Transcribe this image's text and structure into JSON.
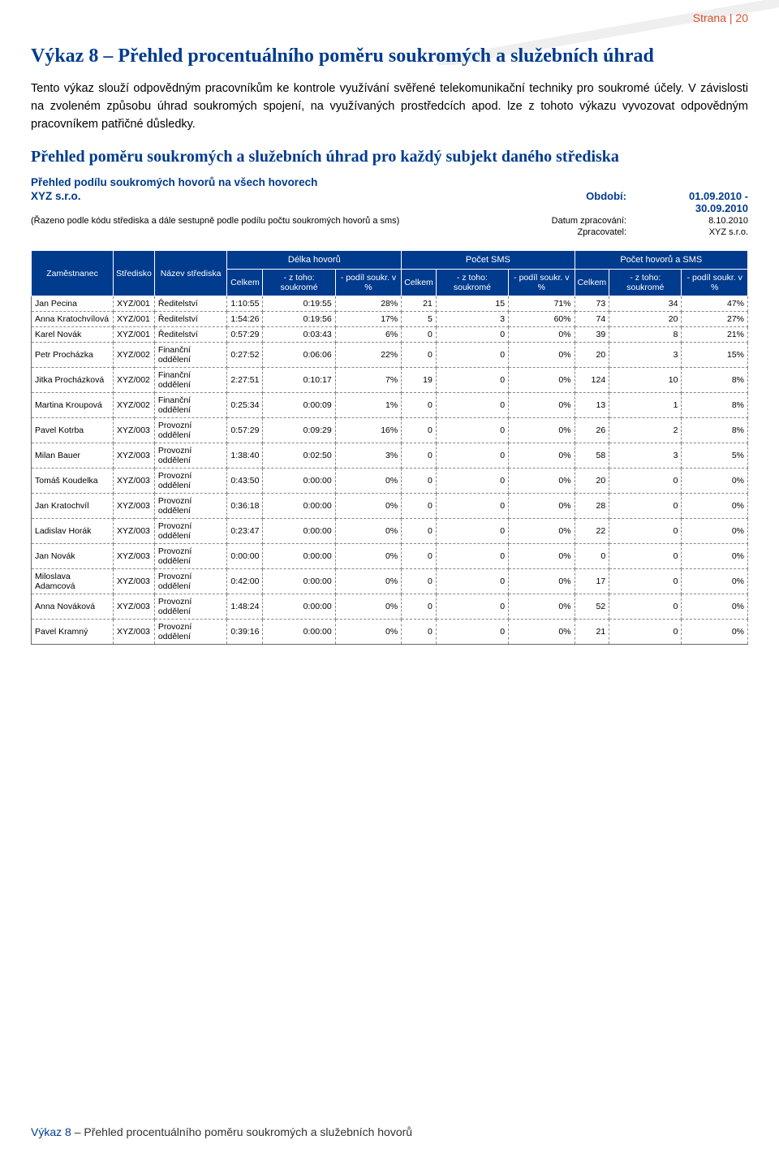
{
  "page_label": "Strana | 20",
  "title": "Výkaz 8 – Přehled procentuálního poměru soukromých a služebních úhrad",
  "para1": "Tento výkaz slouží odpovědným pracovníkům ke kontrole využívání svěřené telekomunikační techniky pro soukromé účely. V závislosti na zvoleném způsobu úhrad soukromých spojení, na využívaných prostředcích apod. lze z tohoto výkazu vyvozovat odpovědným pracovníkem patřičné důsledky.",
  "subtitle": "Přehled poměru soukromých a služebních úhrad pro každý subjekt daného střediska",
  "report": {
    "line1": "Přehled podílu soukromých hovorů na všech hovorech",
    "line2": "XYZ s.r.o.",
    "period_label": "Období:",
    "period_value": "01.09.2010 - 30.09.2010",
    "sort_note": "(Řazeno podle kódu střediska a dále sestupně podle podílu počtu soukromých hovorů a sms)",
    "date_label": "Datum zpracování:",
    "date_value": "8.10.2010",
    "proc_label": "Zpracovatel:",
    "proc_value": "XYZ s.r.o."
  },
  "table": {
    "groups": [
      "Délka hovorů",
      "Počet SMS",
      "Počet hovorů a SMS"
    ],
    "head": {
      "zam": "Zaměstnanec",
      "str": "Středisko",
      "naz": "Název střediska",
      "celkem": "Celkem",
      "ztoho": "- z toho: soukromé",
      "podil": "- podíl soukr. v %"
    },
    "rows": [
      [
        "Jan Pecina",
        "XYZ/001",
        "Ředitelství",
        "1:10:55",
        "0:19:55",
        "28%",
        "21",
        "15",
        "71%",
        "73",
        "34",
        "47%"
      ],
      [
        "Anna Kratochvílová",
        "XYZ/001",
        "Ředitelství",
        "1:54:26",
        "0:19:56",
        "17%",
        "5",
        "3",
        "60%",
        "74",
        "20",
        "27%"
      ],
      [
        "Karel Novák",
        "XYZ/001",
        "Ředitelství",
        "0:57:29",
        "0:03:43",
        "6%",
        "0",
        "0",
        "0%",
        "39",
        "8",
        "21%"
      ],
      [
        "Petr Procházka",
        "XYZ/002",
        "Finanční oddělení",
        "0:27:52",
        "0:06:06",
        "22%",
        "0",
        "0",
        "0%",
        "20",
        "3",
        "15%"
      ],
      [
        "Jitka Procházková",
        "XYZ/002",
        "Finanční oddělení",
        "2:27:51",
        "0:10:17",
        "7%",
        "19",
        "0",
        "0%",
        "124",
        "10",
        "8%"
      ],
      [
        "Martina Kroupová",
        "XYZ/002",
        "Finanční oddělení",
        "0:25:34",
        "0:00:09",
        "1%",
        "0",
        "0",
        "0%",
        "13",
        "1",
        "8%"
      ],
      [
        "Pavel Kotrba",
        "XYZ/003",
        "Provozní oddělení",
        "0:57:29",
        "0:09:29",
        "16%",
        "0",
        "0",
        "0%",
        "26",
        "2",
        "8%"
      ],
      [
        "Milan Bauer",
        "XYZ/003",
        "Provozní oddělení",
        "1:38:40",
        "0:02:50",
        "3%",
        "0",
        "0",
        "0%",
        "58",
        "3",
        "5%"
      ],
      [
        "Tomáš Koudelka",
        "XYZ/003",
        "Provozní oddělení",
        "0:43:50",
        "0:00:00",
        "0%",
        "0",
        "0",
        "0%",
        "20",
        "0",
        "0%"
      ],
      [
        "Jan Kratochvíl",
        "XYZ/003",
        "Provozní oddělení",
        "0:36:18",
        "0:00:00",
        "0%",
        "0",
        "0",
        "0%",
        "28",
        "0",
        "0%"
      ],
      [
        "Ladislav Horák",
        "XYZ/003",
        "Provozní oddělení",
        "0:23:47",
        "0:00:00",
        "0%",
        "0",
        "0",
        "0%",
        "22",
        "0",
        "0%"
      ],
      [
        "Jan Novák",
        "XYZ/003",
        "Provozní oddělení",
        "0:00:00",
        "0:00:00",
        "0%",
        "0",
        "0",
        "0%",
        "0",
        "0",
        "0%"
      ],
      [
        "Miloslava Adamcová",
        "XYZ/003",
        "Provozní oddělení",
        "0:42:00",
        "0:00:00",
        "0%",
        "0",
        "0",
        "0%",
        "17",
        "0",
        "0%"
      ],
      [
        "Anna Nováková",
        "XYZ/003",
        "Provozní oddělení",
        "1:48:24",
        "0:00:00",
        "0%",
        "0",
        "0",
        "0%",
        "52",
        "0",
        "0%"
      ],
      [
        "Pavel Kramný",
        "XYZ/003",
        "Provozní oddělení",
        "0:39:16",
        "0:00:00",
        "0%",
        "0",
        "0",
        "0%",
        "21",
        "0",
        "0%"
      ]
    ]
  },
  "footer": {
    "lead": "Výkaz 8",
    "rest": " – Přehled procentuálního poměru soukromých a služebních hovorů"
  },
  "colors": {
    "brand_blue": "#003b8e",
    "accent_orange": "#d94f2c",
    "row_border": "#888888",
    "background": "#ffffff"
  }
}
